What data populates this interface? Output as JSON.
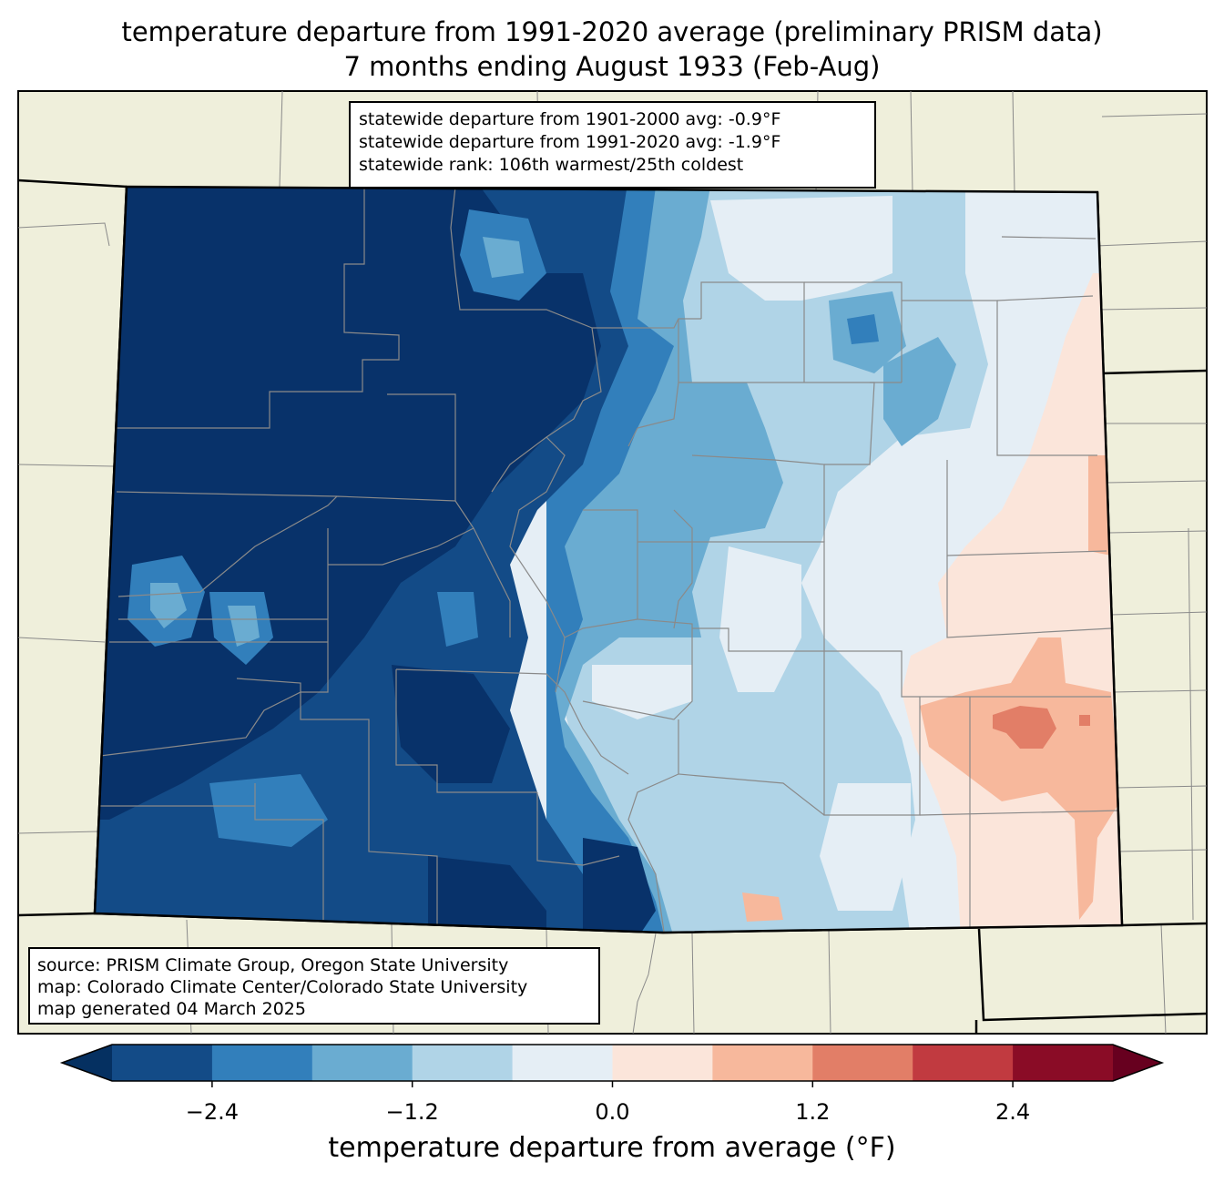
{
  "title_line1": "temperature departure from 1991-2020 average (preliminary PRISM data)",
  "title_line2": "7 months ending August 1933 (Feb-Aug)",
  "stats": {
    "line1": "statewide departure from 1901-2000 avg: -0.9°F",
    "line2": "statewide departure from 1991-2020 avg: -1.9°F",
    "line3": "statewide rank: 106th warmest/25th coldest"
  },
  "source": {
    "line1": "source: PRISM Climate Group, Oregon State University",
    "line2": "map: Colorado Climate Center/Colorado State University",
    "line3": "map generated 04 March 2025"
  },
  "colorbar": {
    "label": "temperature departure from average (°F)",
    "ticks": [
      "−2.4",
      "−1.2",
      "0.0",
      "1.2",
      "2.4"
    ],
    "bins": [
      {
        "min": -3.0,
        "max": -2.4,
        "color": "#134b87"
      },
      {
        "min": -2.4,
        "max": -1.8,
        "color": "#327fbb"
      },
      {
        "min": -1.8,
        "max": -1.2,
        "color": "#6aacd1"
      },
      {
        "min": -1.2,
        "max": -0.6,
        "color": "#b0d4e7"
      },
      {
        "min": -0.6,
        "max": 0.0,
        "color": "#e5eef5"
      },
      {
        "min": 0.0,
        "max": 0.6,
        "color": "#fbe5da"
      },
      {
        "min": 0.6,
        "max": 1.2,
        "color": "#f7b89c"
      },
      {
        "min": 1.2,
        "max": 1.8,
        "color": "#e27e67"
      },
      {
        "min": 1.8,
        "max": 2.4,
        "color": "#c13a40"
      },
      {
        "min": 2.4,
        "max": 3.0,
        "color": "#8a0c26"
      }
    ],
    "under_color": "#053061",
    "over_color": "#67001f"
  },
  "colors": {
    "land": "#efefdb",
    "darkest_blue": "#08326a"
  }
}
